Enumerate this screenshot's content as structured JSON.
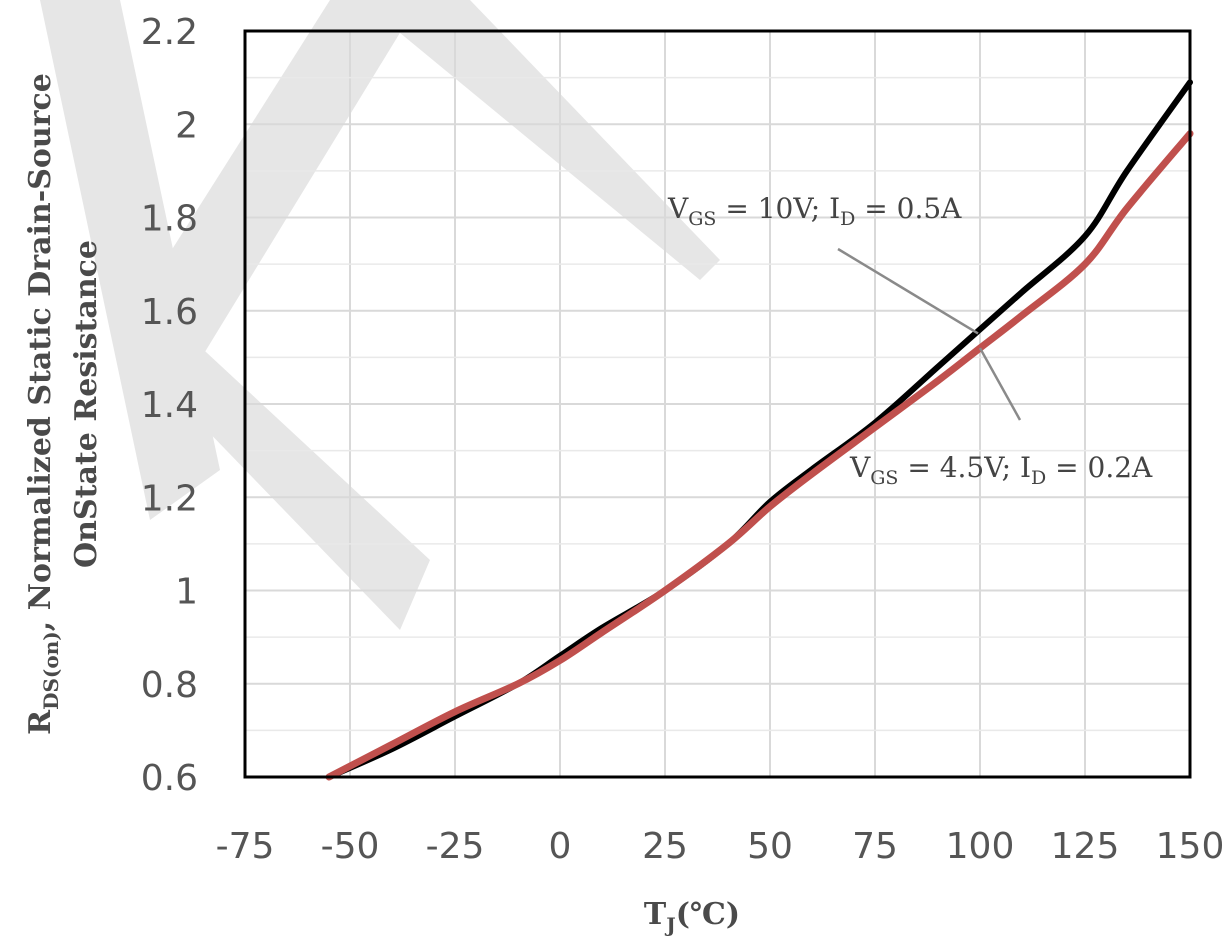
{
  "chart_data": {
    "type": "line",
    "xlabel_main": "T",
    "xlabel_sub": "J",
    "xlabel_unit": "(℃)",
    "ylabel_line1_main": "R",
    "ylabel_line1_sub": "DS(on)",
    "ylabel_line1_rest": ", Normalized Static Drain-Source",
    "ylabel_line2": "OnState Resistance",
    "xlim": [
      -75,
      150
    ],
    "ylim": [
      0.6,
      2.2
    ],
    "xticks": [
      -75,
      -50,
      -25,
      0,
      25,
      50,
      75,
      100,
      125,
      150
    ],
    "yticks": [
      0.6,
      0.8,
      1,
      1.2,
      1.4,
      1.6,
      1.8,
      2,
      2.2
    ],
    "xtick_labels": [
      "-75",
      "-50",
      "-25",
      "0",
      "25",
      "50",
      "75",
      "100",
      "125",
      "150"
    ],
    "ytick_labels": [
      "0.6",
      "0.8",
      "1",
      "1.2",
      "1.4",
      "1.6",
      "1.8",
      "2",
      "2.2"
    ],
    "grid": true,
    "series": [
      {
        "color": "#000000",
        "x": [
          -55,
          -40,
          -25,
          -10,
          0,
          10,
          25,
          40,
          50,
          60,
          75,
          90,
          100,
          110,
          125,
          135,
          150
        ],
        "y": [
          0.6,
          0.66,
          0.73,
          0.8,
          0.86,
          0.92,
          1.0,
          1.1,
          1.19,
          1.26,
          1.36,
          1.48,
          1.56,
          1.64,
          1.76,
          1.9,
          2.09
        ]
      },
      {
        "color": "#c0504d",
        "x": [
          -55,
          -40,
          -25,
          -10,
          0,
          10,
          25,
          40,
          50,
          60,
          75,
          90,
          100,
          110,
          125,
          135,
          150
        ],
        "y": [
          0.6,
          0.67,
          0.74,
          0.8,
          0.85,
          0.91,
          1.0,
          1.1,
          1.18,
          1.25,
          1.35,
          1.45,
          1.52,
          1.59,
          1.7,
          1.82,
          1.98
        ]
      }
    ],
    "annotations": [
      {
        "main1": "V",
        "sub1": "GS",
        "text1": " = 10V; I",
        "sub2": "D",
        "text2": " = 0.5A",
        "points_to": {
          "x": 100,
          "y": 1.56
        }
      },
      {
        "main1": "V",
        "sub1": "GS",
        "text1": " = 4.5V; I",
        "sub2": "D",
        "text2": " = 0.2A",
        "points_to": {
          "x": 100,
          "y": 1.52
        }
      }
    ]
  }
}
